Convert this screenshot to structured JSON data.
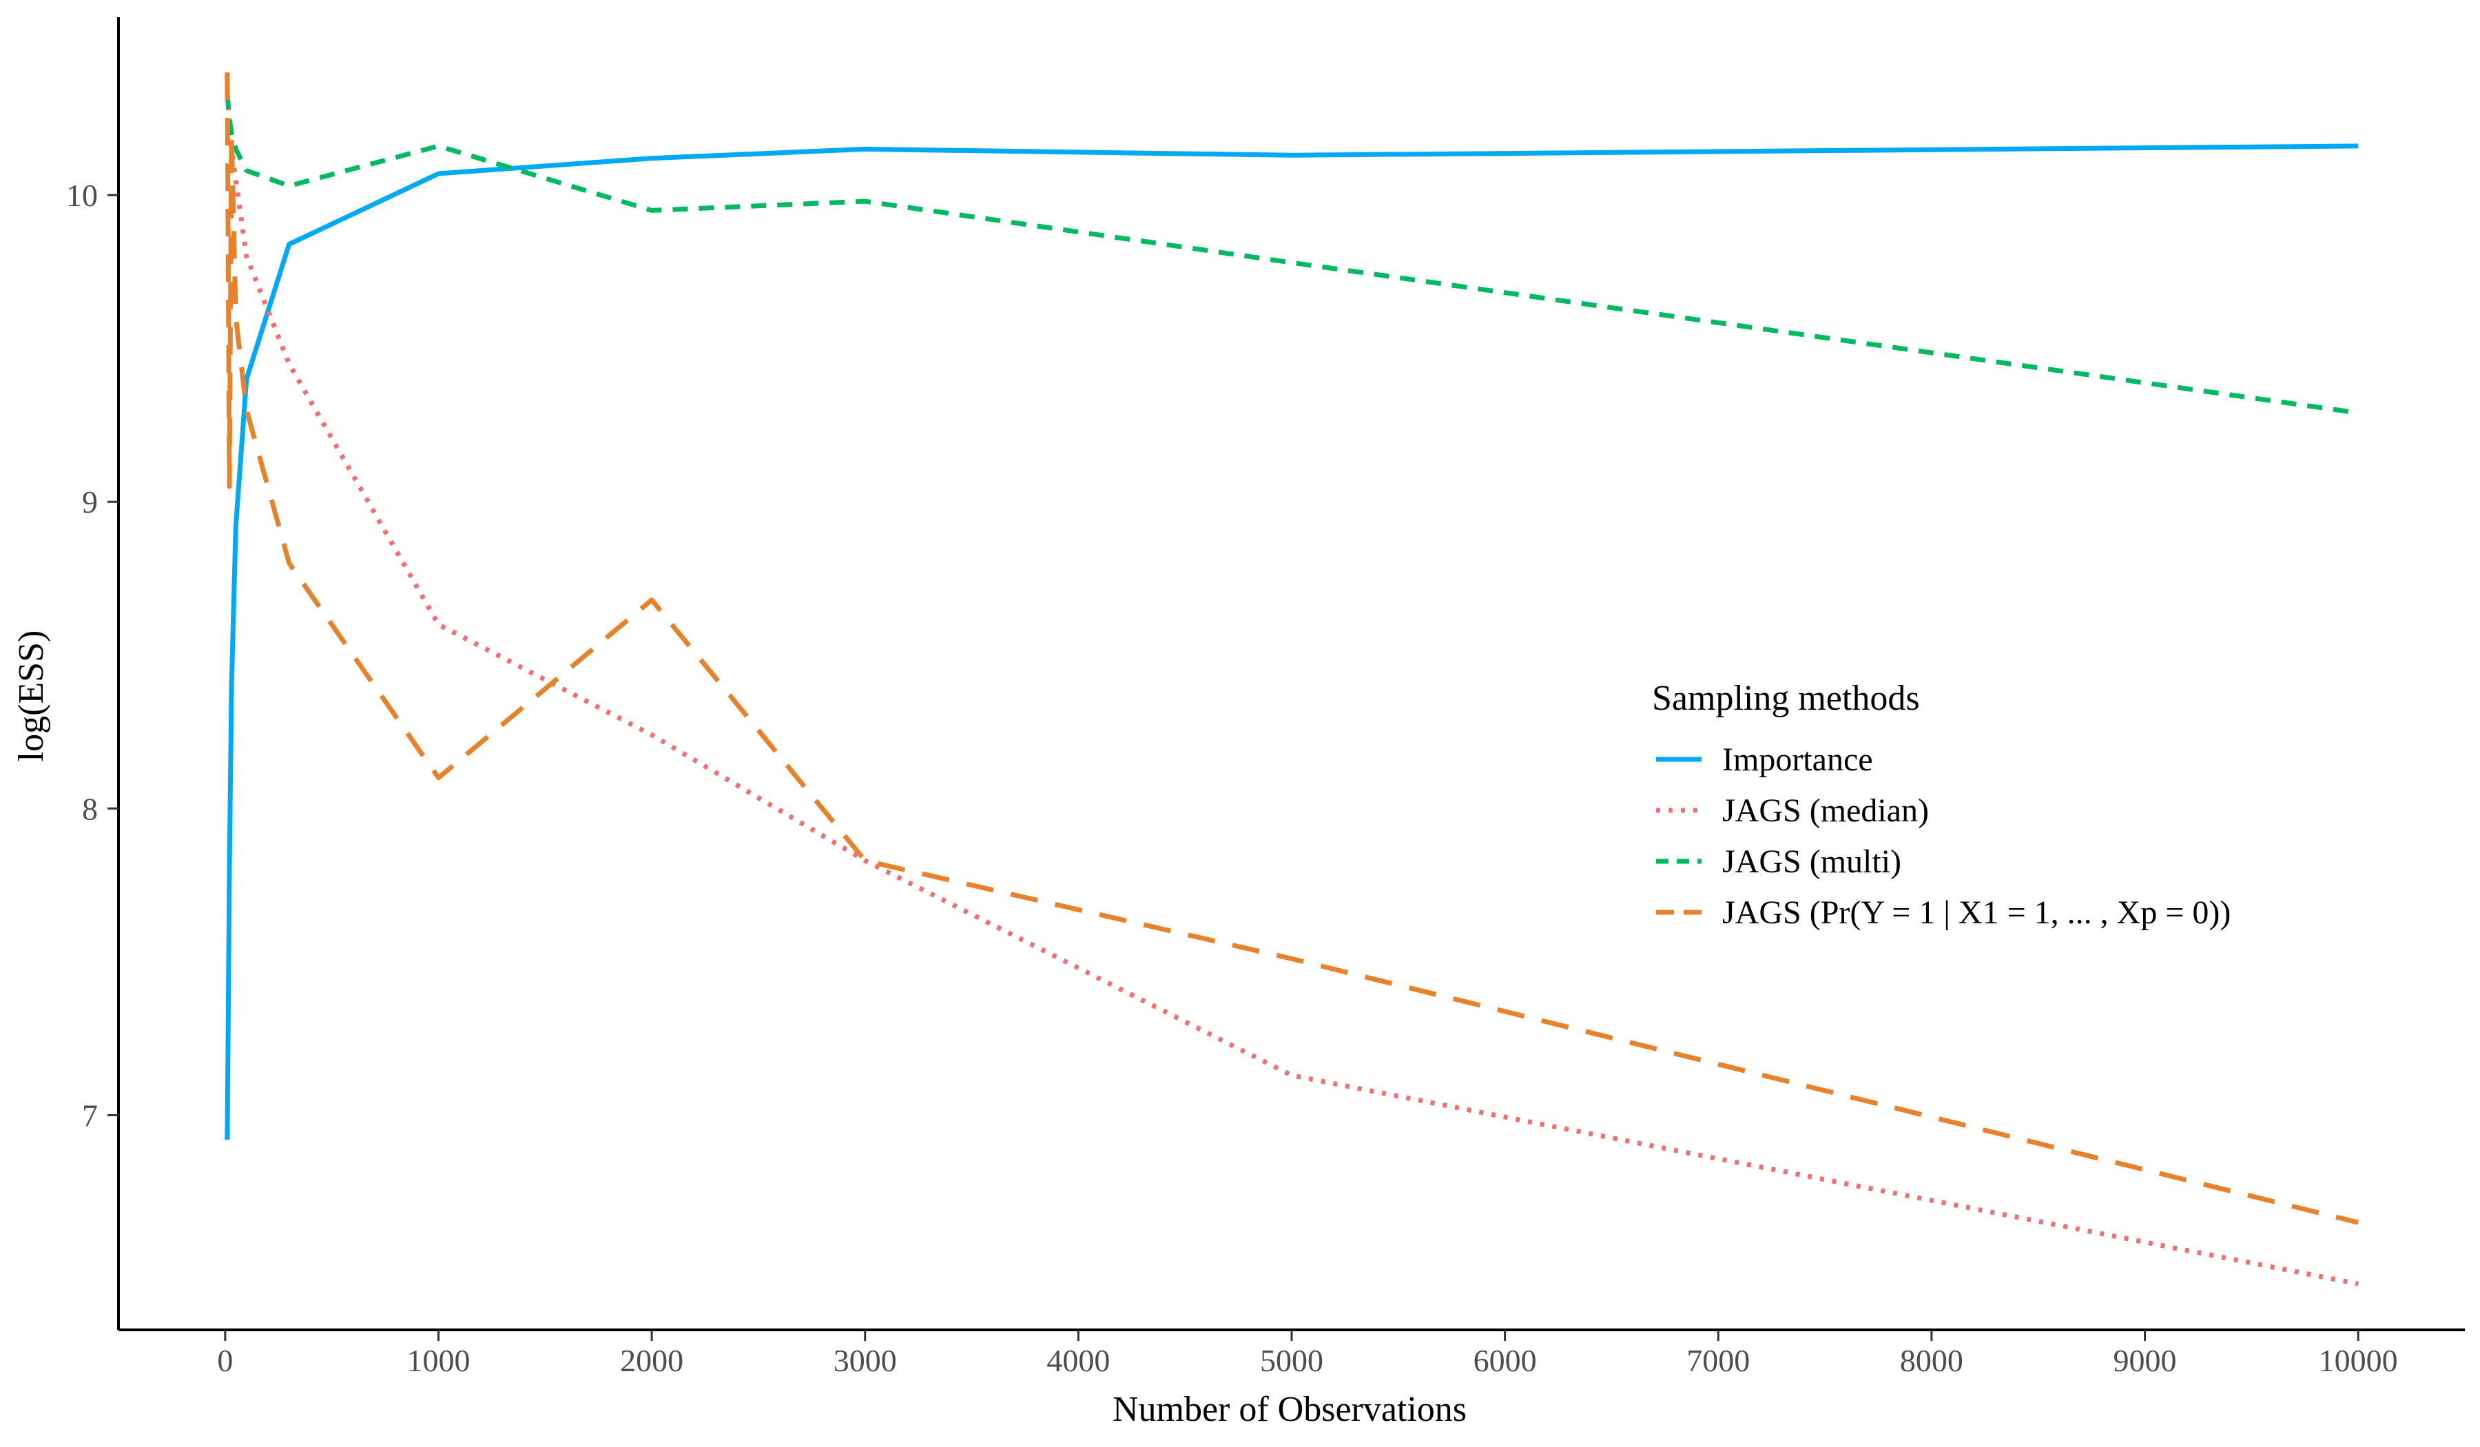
{
  "chart_data": {
    "type": "line",
    "xlabel": "Number of Observations",
    "ylabel": "log(ESS)",
    "xlim": [
      -500,
      10500
    ],
    "ylim": [
      6.3,
      10.58
    ],
    "xticks": [
      0,
      1000,
      2000,
      3000,
      4000,
      5000,
      6000,
      7000,
      8000,
      9000,
      10000
    ],
    "yticks": [
      7,
      8,
      9,
      10
    ],
    "grid": false,
    "legend": {
      "title": "Sampling methods",
      "position": "right"
    },
    "series": [
      {
        "name": "Importance",
        "color": "#00a9f4",
        "dash": "solid",
        "x": [
          10,
          20,
          30,
          50,
          100,
          300,
          1000,
          2000,
          3000,
          5000,
          10000
        ],
        "y": [
          6.92,
          7.8,
          8.4,
          8.92,
          9.4,
          9.84,
          10.07,
          10.12,
          10.15,
          10.13,
          10.16
        ]
      },
      {
        "name": "JAGS (median)",
        "color": "#f07070",
        "dash": "dotted",
        "x": [
          10,
          20,
          30,
          50,
          100,
          300,
          1000,
          2000,
          3000,
          5000,
          10000
        ],
        "y": [
          10.33,
          10.25,
          10.15,
          10.05,
          9.8,
          9.45,
          8.6,
          8.24,
          7.83,
          7.13,
          6.45
        ]
      },
      {
        "name": "JAGS (multi)",
        "color": "#00b960",
        "dash": "dashed",
        "x": [
          10,
          20,
          30,
          50,
          100,
          300,
          1000,
          2000,
          3000,
          5000,
          10000
        ],
        "y": [
          10.33,
          10.25,
          10.2,
          10.15,
          10.08,
          10.03,
          10.16,
          9.95,
          9.98,
          9.78,
          9.29
        ]
      },
      {
        "name": "JAGS (Pr(Y = 1 | X1 = 1, ... , Xp = 0))",
        "color": "#e8822a",
        "dash": "longdash",
        "x": [
          10,
          20,
          30,
          50,
          100,
          300,
          1000,
          2000,
          3000,
          5000,
          10000
        ],
        "y": [
          10.4,
          9.05,
          10.2,
          9.6,
          9.3,
          8.8,
          8.1,
          8.68,
          7.83,
          7.51,
          6.65
        ]
      }
    ]
  }
}
